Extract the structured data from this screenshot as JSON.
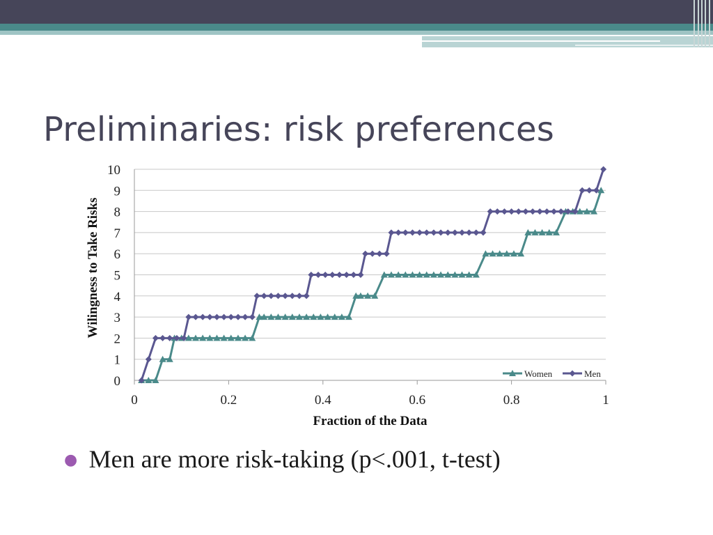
{
  "slide": {
    "title": "Preliminaries: risk preferences",
    "bullet": "Men are more risk-taking (p<.001, t-test)",
    "accent_colors": {
      "dark": "#464559",
      "teal": "#4a8a8a",
      "bullet": "#9c5ab0"
    }
  },
  "chart_data": {
    "type": "line",
    "title": "",
    "xlabel": "Fraction of the Data",
    "ylabel": "Wilingness to Take Risks",
    "xlim": [
      0,
      1
    ],
    "ylim": [
      0,
      10
    ],
    "x_ticks": [
      "0",
      "0.2",
      "0.4",
      "0.6",
      "0.8",
      "1"
    ],
    "y_ticks": [
      "0",
      "1",
      "2",
      "3",
      "4",
      "5",
      "6",
      "7",
      "8",
      "9",
      "10"
    ],
    "grid": true,
    "legend_position": "bottom-right",
    "series": [
      {
        "name": "Women",
        "marker": "triangle",
        "color": "#4a8a8a",
        "x": [
          0.015,
          0.03,
          0.045,
          0.06,
          0.075,
          0.085,
          0.1,
          0.115,
          0.13,
          0.145,
          0.16,
          0.175,
          0.19,
          0.205,
          0.22,
          0.235,
          0.25,
          0.265,
          0.275,
          0.29,
          0.305,
          0.32,
          0.335,
          0.35,
          0.365,
          0.38,
          0.395,
          0.41,
          0.425,
          0.44,
          0.455,
          0.47,
          0.48,
          0.495,
          0.51,
          0.53,
          0.545,
          0.56,
          0.575,
          0.59,
          0.605,
          0.62,
          0.635,
          0.65,
          0.665,
          0.68,
          0.695,
          0.71,
          0.725,
          0.745,
          0.76,
          0.775,
          0.79,
          0.805,
          0.82,
          0.835,
          0.85,
          0.865,
          0.88,
          0.895,
          0.915,
          0.93,
          0.945,
          0.96,
          0.975,
          0.99
        ],
        "y": [
          0,
          0,
          0,
          1,
          1,
          2,
          2,
          2,
          2,
          2,
          2,
          2,
          2,
          2,
          2,
          2,
          2,
          3,
          3,
          3,
          3,
          3,
          3,
          3,
          3,
          3,
          3,
          3,
          3,
          3,
          3,
          4,
          4,
          4,
          4,
          5,
          5,
          5,
          5,
          5,
          5,
          5,
          5,
          5,
          5,
          5,
          5,
          5,
          5,
          6,
          6,
          6,
          6,
          6,
          6,
          7,
          7,
          7,
          7,
          7,
          8,
          8,
          8,
          8,
          8,
          9
        ]
      },
      {
        "name": "Men",
        "marker": "diamond",
        "color": "#5a5790",
        "x": [
          0.015,
          0.03,
          0.045,
          0.06,
          0.075,
          0.09,
          0.105,
          0.115,
          0.13,
          0.145,
          0.16,
          0.175,
          0.19,
          0.205,
          0.22,
          0.235,
          0.25,
          0.26,
          0.275,
          0.29,
          0.305,
          0.32,
          0.335,
          0.35,
          0.365,
          0.375,
          0.39,
          0.405,
          0.42,
          0.435,
          0.45,
          0.465,
          0.48,
          0.49,
          0.505,
          0.52,
          0.535,
          0.545,
          0.56,
          0.575,
          0.59,
          0.605,
          0.62,
          0.635,
          0.65,
          0.665,
          0.68,
          0.695,
          0.71,
          0.725,
          0.74,
          0.755,
          0.77,
          0.785,
          0.8,
          0.815,
          0.83,
          0.845,
          0.86,
          0.875,
          0.89,
          0.905,
          0.92,
          0.935,
          0.95,
          0.965,
          0.98,
          0.995
        ],
        "y": [
          0,
          1,
          2,
          2,
          2,
          2,
          2,
          3,
          3,
          3,
          3,
          3,
          3,
          3,
          3,
          3,
          3,
          4,
          4,
          4,
          4,
          4,
          4,
          4,
          4,
          5,
          5,
          5,
          5,
          5,
          5,
          5,
          5,
          6,
          6,
          6,
          6,
          7,
          7,
          7,
          7,
          7,
          7,
          7,
          7,
          7,
          7,
          7,
          7,
          7,
          7,
          8,
          8,
          8,
          8,
          8,
          8,
          8,
          8,
          8,
          8,
          8,
          8,
          8,
          9,
          9,
          9,
          10
        ]
      }
    ]
  }
}
